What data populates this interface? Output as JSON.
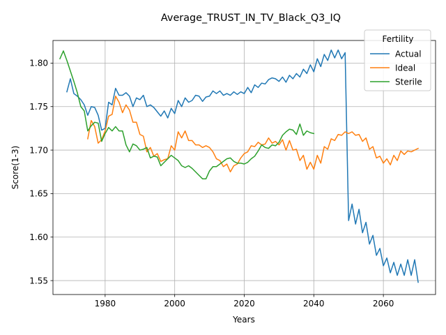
{
  "chart_data": {
    "type": "line",
    "title": "Average_TRUST_IN_TV_Black_Q3_IQ",
    "xlabel": "Years",
    "ylabel": "Score(1-3)",
    "xlim": [
      1965,
      2075
    ],
    "ylim": [
      1.534,
      1.826
    ],
    "xticks": [
      "1980",
      "2000",
      "2020",
      "2040",
      "2060"
    ],
    "yticks": [
      "1.55",
      "1.60",
      "1.65",
      "1.70",
      "1.75",
      "1.80"
    ],
    "grid": true,
    "legend": {
      "title": "Fertility",
      "placement": "upper right"
    },
    "series": [
      {
        "name": "Actual",
        "color": "#1f77b4",
        "x": [
          1969,
          1970,
          1971,
          1972,
          1973,
          1974,
          1975,
          1976,
          1977,
          1978,
          1979,
          1980,
          1981,
          1982,
          1983,
          1984,
          1985,
          1986,
          1987,
          1988,
          1989,
          1990,
          1991,
          1992,
          1993,
          1994,
          1995,
          1996,
          1997,
          1998,
          1999,
          2000,
          2001,
          2002,
          2003,
          2004,
          2005,
          2006,
          2007,
          2008,
          2009,
          2010,
          2011,
          2012,
          2013,
          2014,
          2015,
          2016,
          2017,
          2018,
          2019,
          2020,
          2021,
          2022,
          2023,
          2024,
          2025,
          2026,
          2027,
          2028,
          2029,
          2030,
          2031,
          2032,
          2033,
          2034,
          2035,
          2036,
          2037,
          2038,
          2039,
          2040,
          2041,
          2042,
          2043,
          2044,
          2045,
          2046,
          2047,
          2048,
          2049,
          2050,
          2051,
          2052,
          2053,
          2054,
          2055,
          2056,
          2057,
          2058,
          2059,
          2060,
          2061,
          2062,
          2063,
          2064,
          2065,
          2066,
          2067,
          2068,
          2069,
          2070
        ],
        "values": [
          1.767,
          1.782,
          1.765,
          1.762,
          1.758,
          1.752,
          1.74,
          1.75,
          1.749,
          1.74,
          1.723,
          1.725,
          1.755,
          1.752,
          1.771,
          1.763,
          1.763,
          1.766,
          1.762,
          1.75,
          1.76,
          1.758,
          1.763,
          1.75,
          1.752,
          1.749,
          1.744,
          1.739,
          1.745,
          1.737,
          1.748,
          1.742,
          1.757,
          1.75,
          1.76,
          1.755,
          1.757,
          1.763,
          1.762,
          1.756,
          1.761,
          1.762,
          1.768,
          1.765,
          1.768,
          1.763,
          1.765,
          1.763,
          1.767,
          1.764,
          1.767,
          1.765,
          1.772,
          1.766,
          1.775,
          1.772,
          1.777,
          1.776,
          1.781,
          1.783,
          1.782,
          1.779,
          1.784,
          1.778,
          1.786,
          1.782,
          1.788,
          1.784,
          1.793,
          1.788,
          1.798,
          1.79,
          1.805,
          1.796,
          1.81,
          1.803,
          1.815,
          1.806,
          1.815,
          1.805,
          1.812,
          1.619,
          1.638,
          1.615,
          1.632,
          1.605,
          1.617,
          1.592,
          1.602,
          1.579,
          1.587,
          1.567,
          1.576,
          1.559,
          1.571,
          1.556,
          1.569,
          1.556,
          1.574,
          1.556,
          1.574,
          1.548
        ]
      },
      {
        "name": "Ideal",
        "color": "#ff7f0e",
        "x": [
          1975,
          1976,
          1977,
          1978,
          1979,
          1980,
          1981,
          1982,
          1983,
          1984,
          1985,
          1986,
          1987,
          1988,
          1989,
          1990,
          1991,
          1992,
          1993,
          1994,
          1995,
          1996,
          1997,
          1998,
          1999,
          2000,
          2001,
          2002,
          2003,
          2004,
          2005,
          2006,
          2007,
          2008,
          2009,
          2010,
          2011,
          2012,
          2013,
          2014,
          2015,
          2016,
          2017,
          2018,
          2019,
          2020,
          2021,
          2022,
          2023,
          2024,
          2025,
          2026,
          2027,
          2028,
          2029,
          2030,
          2031,
          2032,
          2033,
          2034,
          2035,
          2036,
          2037,
          2038,
          2039,
          2040,
          2041,
          2042,
          2043,
          2044,
          2045,
          2046,
          2047,
          2048,
          2049,
          2050,
          2051,
          2052,
          2053,
          2054,
          2055,
          2056,
          2057,
          2058,
          2059,
          2060,
          2061,
          2062,
          2063,
          2064,
          2065,
          2066,
          2067,
          2068,
          2069,
          2070
        ],
        "values": [
          1.713,
          1.734,
          1.727,
          1.708,
          1.712,
          1.722,
          1.739,
          1.741,
          1.762,
          1.755,
          1.743,
          1.752,
          1.746,
          1.732,
          1.732,
          1.718,
          1.716,
          1.698,
          1.703,
          1.693,
          1.696,
          1.687,
          1.689,
          1.69,
          1.705,
          1.7,
          1.721,
          1.714,
          1.722,
          1.711,
          1.711,
          1.706,
          1.706,
          1.703,
          1.705,
          1.703,
          1.698,
          1.69,
          1.688,
          1.681,
          1.684,
          1.675,
          1.682,
          1.684,
          1.691,
          1.696,
          1.698,
          1.705,
          1.704,
          1.709,
          1.706,
          1.707,
          1.714,
          1.708,
          1.71,
          1.706,
          1.712,
          1.7,
          1.711,
          1.7,
          1.701,
          1.688,
          1.694,
          1.678,
          1.686,
          1.678,
          1.694,
          1.685,
          1.704,
          1.701,
          1.713,
          1.711,
          1.718,
          1.717,
          1.721,
          1.719,
          1.721,
          1.717,
          1.718,
          1.71,
          1.714,
          1.701,
          1.704,
          1.691,
          1.693,
          1.685,
          1.69,
          1.683,
          1.694,
          1.688,
          1.699,
          1.695,
          1.699,
          1.698,
          1.7,
          1.702
        ]
      },
      {
        "name": "Sterile",
        "color": "#2ca02c",
        "x": [
          1967,
          1968,
          1969,
          1970,
          1971,
          1972,
          1973,
          1974,
          1975,
          1976,
          1977,
          1978,
          1979,
          1980,
          1981,
          1982,
          1983,
          1984,
          1985,
          1986,
          1987,
          1988,
          1989,
          1990,
          1991,
          1992,
          1993,
          1994,
          1995,
          1996,
          1997,
          1998,
          1999,
          2000,
          2001,
          2002,
          2003,
          2004,
          2005,
          2006,
          2007,
          2008,
          2009,
          2010,
          2011,
          2012,
          2013,
          2014,
          2015,
          2016,
          2017,
          2018,
          2019,
          2020,
          2021,
          2022,
          2023,
          2024,
          2025,
          2026,
          2027,
          2028,
          2029,
          2030,
          2031,
          2032,
          2033,
          2034,
          2035,
          2036,
          2037,
          2038,
          2039,
          2040
        ],
        "values": [
          1.805,
          1.814,
          1.803,
          1.791,
          1.779,
          1.766,
          1.75,
          1.745,
          1.722,
          1.728,
          1.732,
          1.731,
          1.71,
          1.719,
          1.726,
          1.722,
          1.727,
          1.722,
          1.722,
          1.706,
          1.698,
          1.707,
          1.705,
          1.7,
          1.701,
          1.703,
          1.691,
          1.693,
          1.692,
          1.682,
          1.686,
          1.69,
          1.694,
          1.691,
          1.688,
          1.682,
          1.68,
          1.682,
          1.679,
          1.675,
          1.671,
          1.667,
          1.667,
          1.676,
          1.681,
          1.681,
          1.684,
          1.687,
          1.69,
          1.691,
          1.687,
          1.685,
          1.685,
          1.684,
          1.686,
          1.69,
          1.693,
          1.699,
          1.706,
          1.703,
          1.702,
          1.706,
          1.705,
          1.709,
          1.717,
          1.721,
          1.724,
          1.723,
          1.718,
          1.73,
          1.717,
          1.722,
          1.72,
          1.719
        ]
      }
    ]
  }
}
